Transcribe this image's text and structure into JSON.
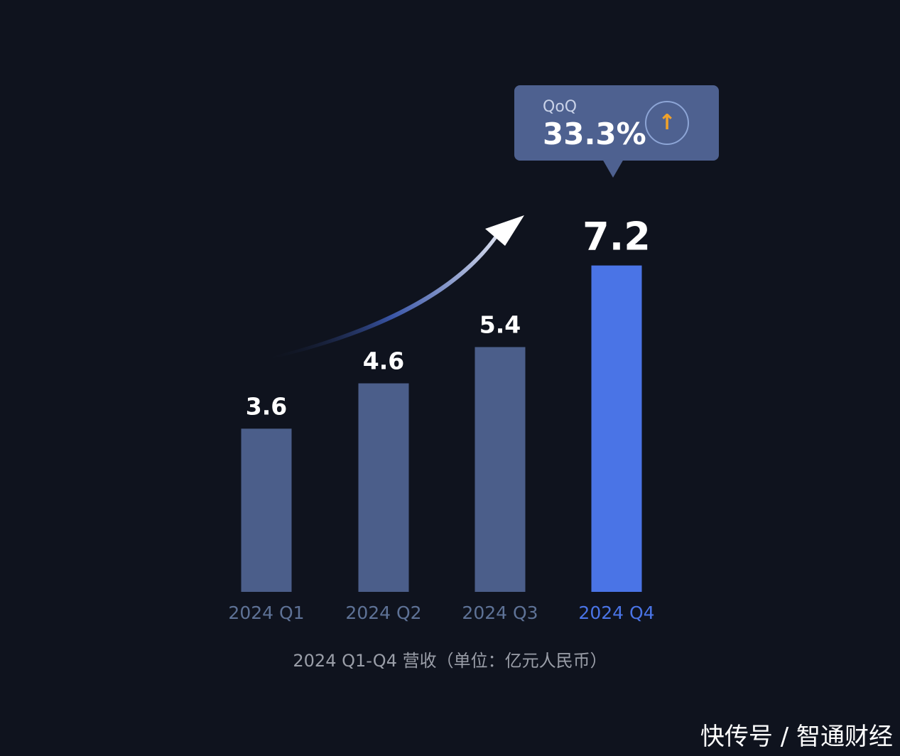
{
  "chart_data": {
    "type": "bar",
    "categories": [
      "2024 Q1",
      "2024 Q2",
      "2024 Q3",
      "2024 Q4"
    ],
    "values": [
      3.6,
      4.6,
      5.4,
      7.2
    ],
    "value_labels": [
      "3.6",
      "4.6",
      "5.4",
      "7.2"
    ],
    "title": "",
    "xlabel": "",
    "ylabel": "",
    "caption": "2024 Q1-Q4 营收（单位：亿元人民币）",
    "ylim": [
      0,
      7.2
    ],
    "grid": false,
    "legend": "none",
    "highlight_index": 3,
    "colors": {
      "bar": "#4b5e8a",
      "bar_highlight": "#4a74e6",
      "tick": "#5e7296",
      "tick_highlight": "#4a74e6"
    },
    "annotation": {
      "label": "QoQ",
      "value": "33.3%",
      "icon": "arrow-up-icon",
      "icon_glyph": "↑",
      "trend_arrow": "curved-up-arrow"
    }
  },
  "watermark": "快传号 / 智通财经"
}
